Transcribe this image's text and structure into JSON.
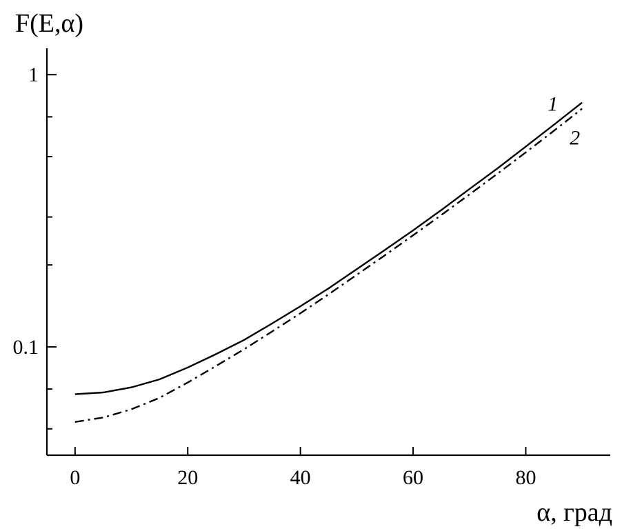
{
  "chart_data": {
    "type": "line",
    "title": "",
    "ylabel": "F(E,α)",
    "xlabel": "α, град",
    "y_scale": "log",
    "xlim": [
      -5,
      95
    ],
    "ylim": [
      0.04,
      1.25
    ],
    "x_ticks": [
      0,
      20,
      40,
      60,
      80
    ],
    "x_tick_labels": [
      "0",
      "20",
      "40",
      "60",
      "80"
    ],
    "y_major_ticks": [
      0.1,
      1
    ],
    "y_major_tick_labels": [
      "0.1",
      "1"
    ],
    "y_minor_ticks": [
      0.05,
      0.07,
      0.2,
      0.3,
      0.5,
      0.7
    ],
    "grid": false,
    "series": [
      {
        "name": "1",
        "style": "solid",
        "x": [
          0,
          5,
          10,
          15,
          20,
          25,
          30,
          35,
          40,
          45,
          50,
          55,
          60,
          65,
          70,
          75,
          80,
          85,
          90
        ],
        "y": [
          0.067,
          0.068,
          0.071,
          0.076,
          0.084,
          0.094,
          0.106,
          0.122,
          0.141,
          0.164,
          0.193,
          0.227,
          0.268,
          0.318,
          0.38,
          0.453,
          0.544,
          0.655,
          0.79
        ]
      },
      {
        "name": "2",
        "style": "dash-dot",
        "x": [
          0,
          5,
          10,
          15,
          20,
          25,
          30,
          35,
          40,
          45,
          50,
          55,
          60,
          65,
          70,
          75,
          80,
          85,
          90
        ],
        "y": [
          0.053,
          0.055,
          0.059,
          0.065,
          0.074,
          0.085,
          0.098,
          0.114,
          0.133,
          0.156,
          0.184,
          0.217,
          0.257,
          0.305,
          0.363,
          0.433,
          0.518,
          0.622,
          0.75
        ]
      }
    ]
  }
}
